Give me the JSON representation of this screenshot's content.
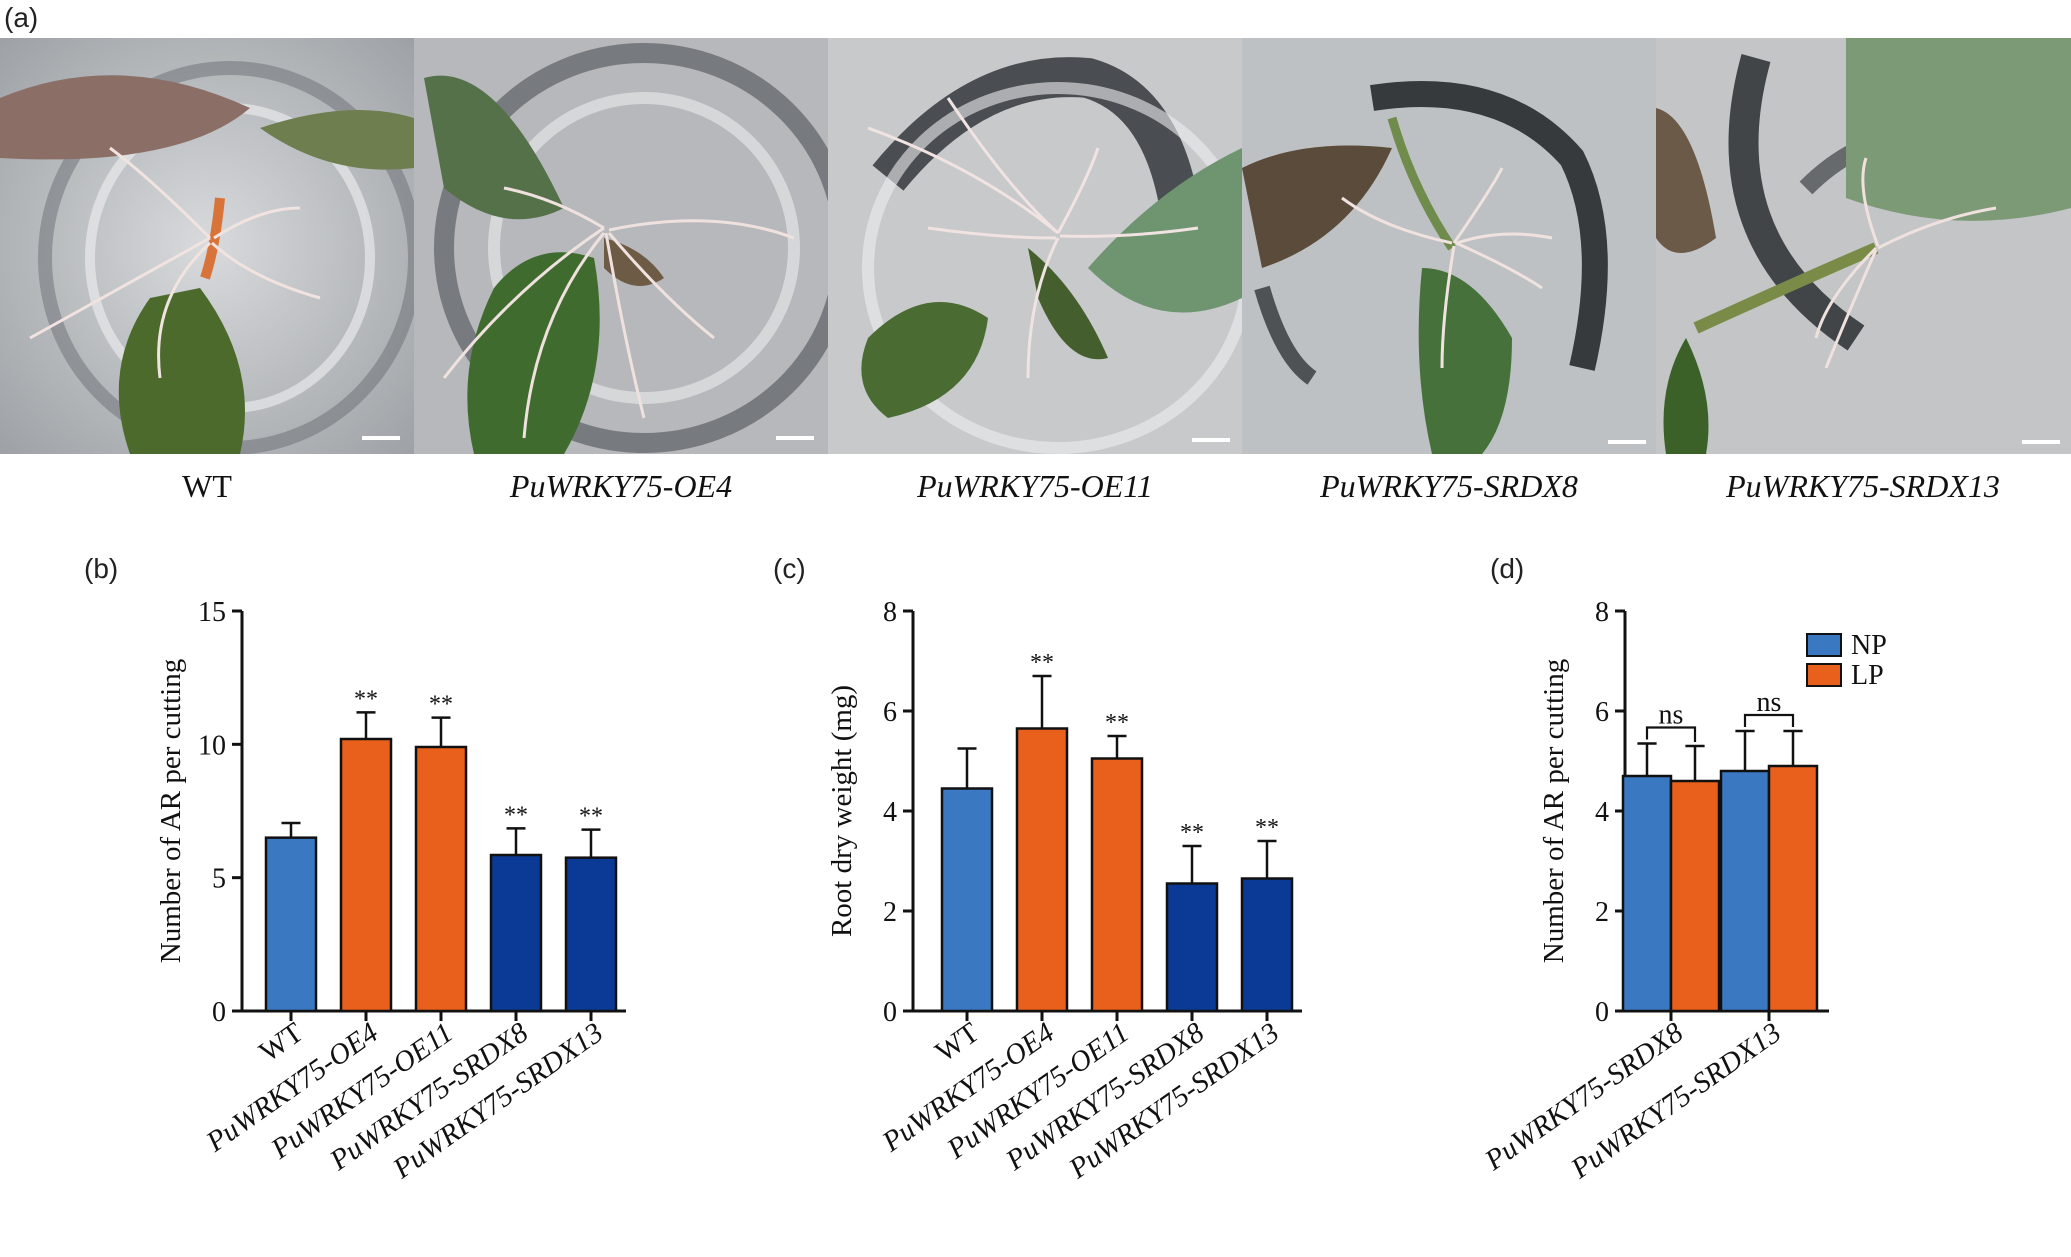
{
  "panel_a": {
    "label": "(a)",
    "photos": [
      {
        "caption": "WT",
        "italic": false
      },
      {
        "caption": "PuWRKY75-OE4",
        "italic": true
      },
      {
        "caption": "PuWRKY75-OE11",
        "italic": true
      },
      {
        "caption": "PuWRKY75-SRDX8",
        "italic": true
      },
      {
        "caption": "PuWRKY75-SRDX13",
        "italic": true
      }
    ]
  },
  "colors": {
    "wt_blue": "#3a78c2",
    "oe_orange": "#e8601c",
    "srdx_navy": "#0a3a96",
    "axis": "#111111"
  },
  "chart_data": [
    {
      "panel": "(b)",
      "type": "bar",
      "ylabel": "Number of AR per cutting",
      "ylim": [
        0,
        15
      ],
      "yticks": [
        0,
        5,
        10,
        15
      ],
      "categories": [
        "WT",
        "PuWRKY75-OE4",
        "PuWRKY75-OE11",
        "PuWRKY75-SRDX8",
        "PuWRKY75-SRDX13"
      ],
      "category_italic": [
        false,
        true,
        true,
        true,
        true
      ],
      "values": [
        6.5,
        10.2,
        9.9,
        5.85,
        5.75
      ],
      "errors": [
        0.55,
        1.0,
        1.1,
        1.0,
        1.05
      ],
      "annotations": [
        "",
        "**",
        "**",
        "**",
        "**"
      ],
      "bar_colors": [
        "wt_blue",
        "oe_orange",
        "oe_orange",
        "srdx_navy",
        "srdx_navy"
      ]
    },
    {
      "panel": "(c)",
      "type": "bar",
      "ylabel": "Root dry weight (mg)",
      "ylim": [
        0,
        8
      ],
      "yticks": [
        0,
        2,
        4,
        6,
        8
      ],
      "categories": [
        "WT",
        "PuWRKY75-OE4",
        "PuWRKY75-OE11",
        "PuWRKY75-SRDX8",
        "PuWRKY75-SRDX13"
      ],
      "category_italic": [
        false,
        true,
        true,
        true,
        true
      ],
      "values": [
        4.45,
        5.65,
        5.05,
        2.55,
        2.65
      ],
      "errors": [
        0.8,
        1.05,
        0.45,
        0.75,
        0.75
      ],
      "annotations": [
        "",
        "**",
        "**",
        "**",
        "**"
      ],
      "bar_colors": [
        "wt_blue",
        "oe_orange",
        "oe_orange",
        "srdx_navy",
        "srdx_navy"
      ]
    },
    {
      "panel": "(d)",
      "type": "bar",
      "ylabel": "Number of AR per cutting",
      "ylim": [
        0,
        8
      ],
      "yticks": [
        0,
        2,
        4,
        6,
        8
      ],
      "categories": [
        "PuWRKY75-SRDX8",
        "PuWRKY75-SRDX13"
      ],
      "category_italic": [
        true,
        true
      ],
      "series": [
        {
          "name": "NP",
          "color": "wt_blue",
          "values": [
            4.7,
            4.8
          ],
          "errors": [
            0.65,
            0.8
          ]
        },
        {
          "name": "LP",
          "color": "oe_orange",
          "values": [
            4.6,
            4.9
          ],
          "errors": [
            0.7,
            0.7
          ]
        }
      ],
      "group_annotations": [
        "ns",
        "ns"
      ],
      "legend_position": "top-right"
    }
  ]
}
